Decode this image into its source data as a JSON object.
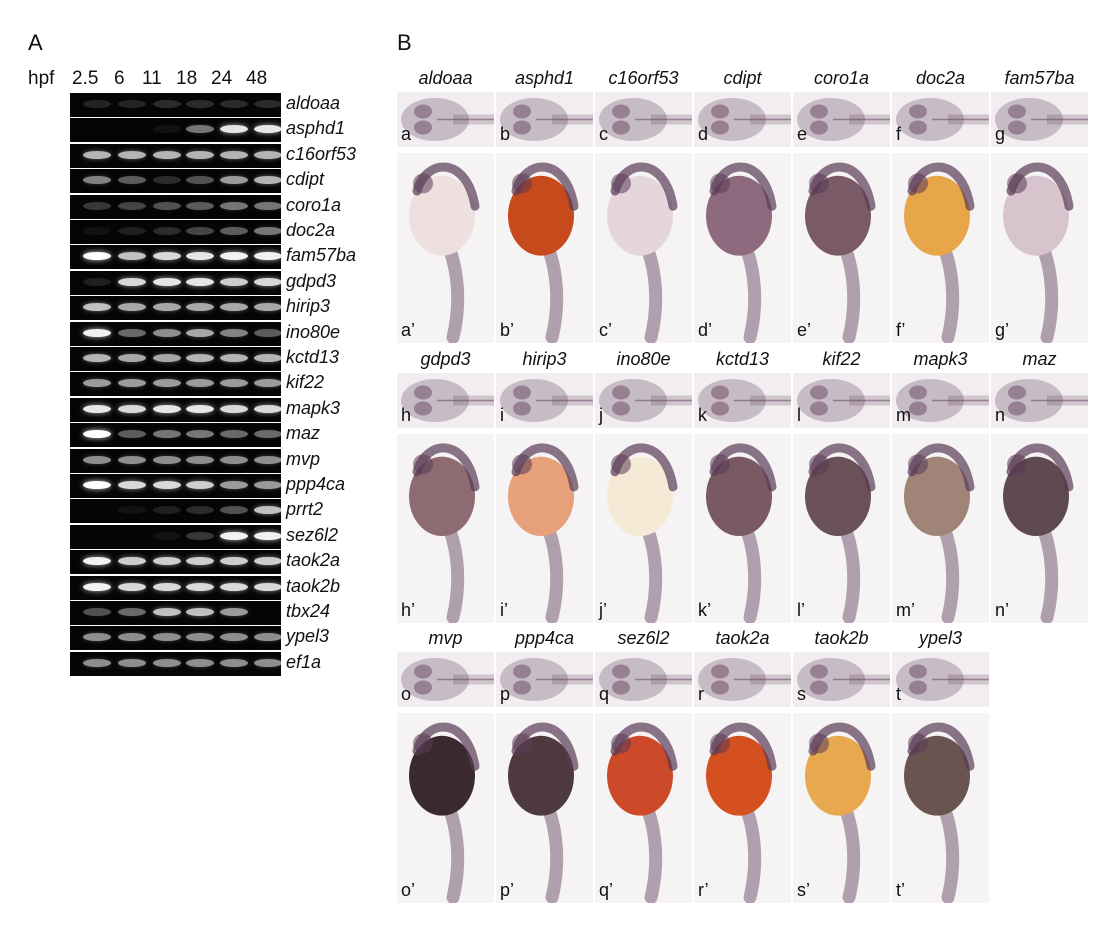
{
  "panels": {
    "a": "A",
    "b": "B"
  },
  "gel": {
    "header_label": "hpf",
    "timepoints": [
      "2.5",
      "6",
      "11",
      "18",
      "24",
      "48"
    ],
    "rows": [
      {
        "gene": "aldoaa",
        "intensity": [
          0.12,
          0.12,
          0.15,
          0.15,
          0.15,
          0.15
        ]
      },
      {
        "gene": "asphd1",
        "intensity": [
          0.0,
          0.0,
          0.05,
          0.45,
          0.9,
          0.9
        ]
      },
      {
        "gene": "c16orf53",
        "intensity": [
          0.7,
          0.7,
          0.7,
          0.7,
          0.7,
          0.7
        ]
      },
      {
        "gene": "cdipt",
        "intensity": [
          0.5,
          0.35,
          0.15,
          0.3,
          0.6,
          0.7
        ]
      },
      {
        "gene": "coro1a",
        "intensity": [
          0.2,
          0.25,
          0.3,
          0.35,
          0.45,
          0.45
        ]
      },
      {
        "gene": "doc2a",
        "intensity": [
          0.05,
          0.1,
          0.15,
          0.25,
          0.35,
          0.45
        ]
      },
      {
        "gene": "fam57ba",
        "intensity": [
          1.0,
          0.75,
          0.85,
          0.9,
          0.95,
          0.95
        ]
      },
      {
        "gene": "gdpd3",
        "intensity": [
          0.1,
          0.85,
          0.9,
          0.9,
          0.8,
          0.85
        ]
      },
      {
        "gene": "hirip3",
        "intensity": [
          0.75,
          0.65,
          0.65,
          0.65,
          0.65,
          0.65
        ]
      },
      {
        "gene": "ino80e",
        "intensity": [
          0.95,
          0.4,
          0.55,
          0.65,
          0.5,
          0.35
        ]
      },
      {
        "gene": "kctd13",
        "intensity": [
          0.7,
          0.65,
          0.65,
          0.7,
          0.7,
          0.7
        ]
      },
      {
        "gene": "kif22",
        "intensity": [
          0.6,
          0.6,
          0.6,
          0.6,
          0.6,
          0.6
        ]
      },
      {
        "gene": "mapk3",
        "intensity": [
          0.9,
          0.85,
          0.9,
          0.9,
          0.85,
          0.85
        ]
      },
      {
        "gene": "maz",
        "intensity": [
          1.0,
          0.35,
          0.45,
          0.45,
          0.4,
          0.4
        ]
      },
      {
        "gene": "mvp",
        "intensity": [
          0.55,
          0.55,
          0.55,
          0.55,
          0.55,
          0.55
        ]
      },
      {
        "gene": "ppp4ca",
        "intensity": [
          1.0,
          0.85,
          0.85,
          0.8,
          0.6,
          0.6
        ]
      },
      {
        "gene": "prrt2",
        "intensity": [
          0.0,
          0.05,
          0.1,
          0.15,
          0.3,
          0.75
        ]
      },
      {
        "gene": "sez6l2",
        "intensity": [
          0.0,
          0.0,
          0.05,
          0.2,
          0.95,
          0.95
        ]
      },
      {
        "gene": "taok2a",
        "intensity": [
          0.95,
          0.8,
          0.8,
          0.8,
          0.8,
          0.8
        ]
      },
      {
        "gene": "taok2b",
        "intensity": [
          0.95,
          0.85,
          0.85,
          0.85,
          0.85,
          0.85
        ]
      },
      {
        "gene": "tbx24",
        "intensity": [
          0.3,
          0.4,
          0.75,
          0.75,
          0.6,
          0.0
        ]
      },
      {
        "gene": "ypel3",
        "intensity": [
          0.55,
          0.55,
          0.55,
          0.55,
          0.55,
          0.55
        ]
      },
      {
        "gene": "ef1a",
        "intensity": [
          0.55,
          0.55,
          0.55,
          0.55,
          0.55,
          0.55
        ]
      }
    ]
  },
  "insitu": [
    {
      "genes": [
        "aldoaa",
        "asphd1",
        "c16orf53",
        "cdipt",
        "coro1a",
        "doc2a",
        "fam57ba"
      ],
      "dorsal": [
        "a",
        "b",
        "c",
        "d",
        "e",
        "f",
        "g"
      ],
      "lateral": [
        "a’",
        "b’",
        "c’",
        "d’",
        "e’",
        "f’",
        "g’"
      ]
    },
    {
      "genes": [
        "gdpd3",
        "hirip3",
        "ino80e",
        "kctd13",
        "kif22",
        "mapk3",
        "maz"
      ],
      "dorsal": [
        "h",
        "i",
        "j",
        "k",
        "l",
        "m",
        "n"
      ],
      "lateral": [
        "h’",
        "i’",
        "j’",
        "k’",
        "l’",
        "m’",
        "n’"
      ]
    },
    {
      "genes": [
        "mvp",
        "ppp4ca",
        "sez6l2",
        "taok2a",
        "taok2b",
        "ypel3"
      ],
      "dorsal": [
        "o",
        "p",
        "q",
        "r",
        "s",
        "t"
      ],
      "lateral": [
        "o’",
        "p’",
        "q’",
        "r’",
        "s’",
        "t’"
      ]
    }
  ],
  "colors": {
    "stain": "#5a3a55",
    "light_bg": "#f2eef0",
    "yolk_colors": [
      "#efe0e0",
      "#c64a1c",
      "#e5d6dc",
      "#8e6a7e",
      "#7a5a66",
      "#e8a64a",
      "#d8c4cc",
      "#8e6a72",
      "#e6a07a",
      "#f5ead6",
      "#7a5a62",
      "#6a5058",
      "#a08478",
      "#5e4a50",
      "#3a2a30",
      "#4e3a3e",
      "#cc4a2a",
      "#d4501e",
      "#e8a850",
      "#6a5450"
    ]
  }
}
